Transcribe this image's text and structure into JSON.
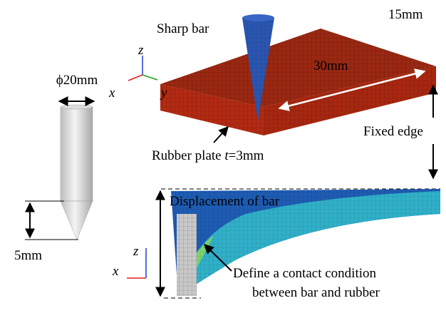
{
  "labels": {
    "sharp_bar": "Sharp bar",
    "width": "15mm",
    "length": "30mm",
    "diameter": "ϕ20mm",
    "tip_length": "5mm",
    "fixed_edge": "Fixed edge",
    "plate": {
      "name": "Rubber plate ",
      "t": "t",
      "thickness": "=3mm"
    },
    "displacement": "Displacement of bar",
    "contact": [
      "Define a contact condition",
      "between bar and rubber"
    ]
  },
  "axes_top": {
    "z": "z",
    "x": "x",
    "y": "y"
  },
  "axes_bottom": {
    "z": "z",
    "x": "x"
  }
}
